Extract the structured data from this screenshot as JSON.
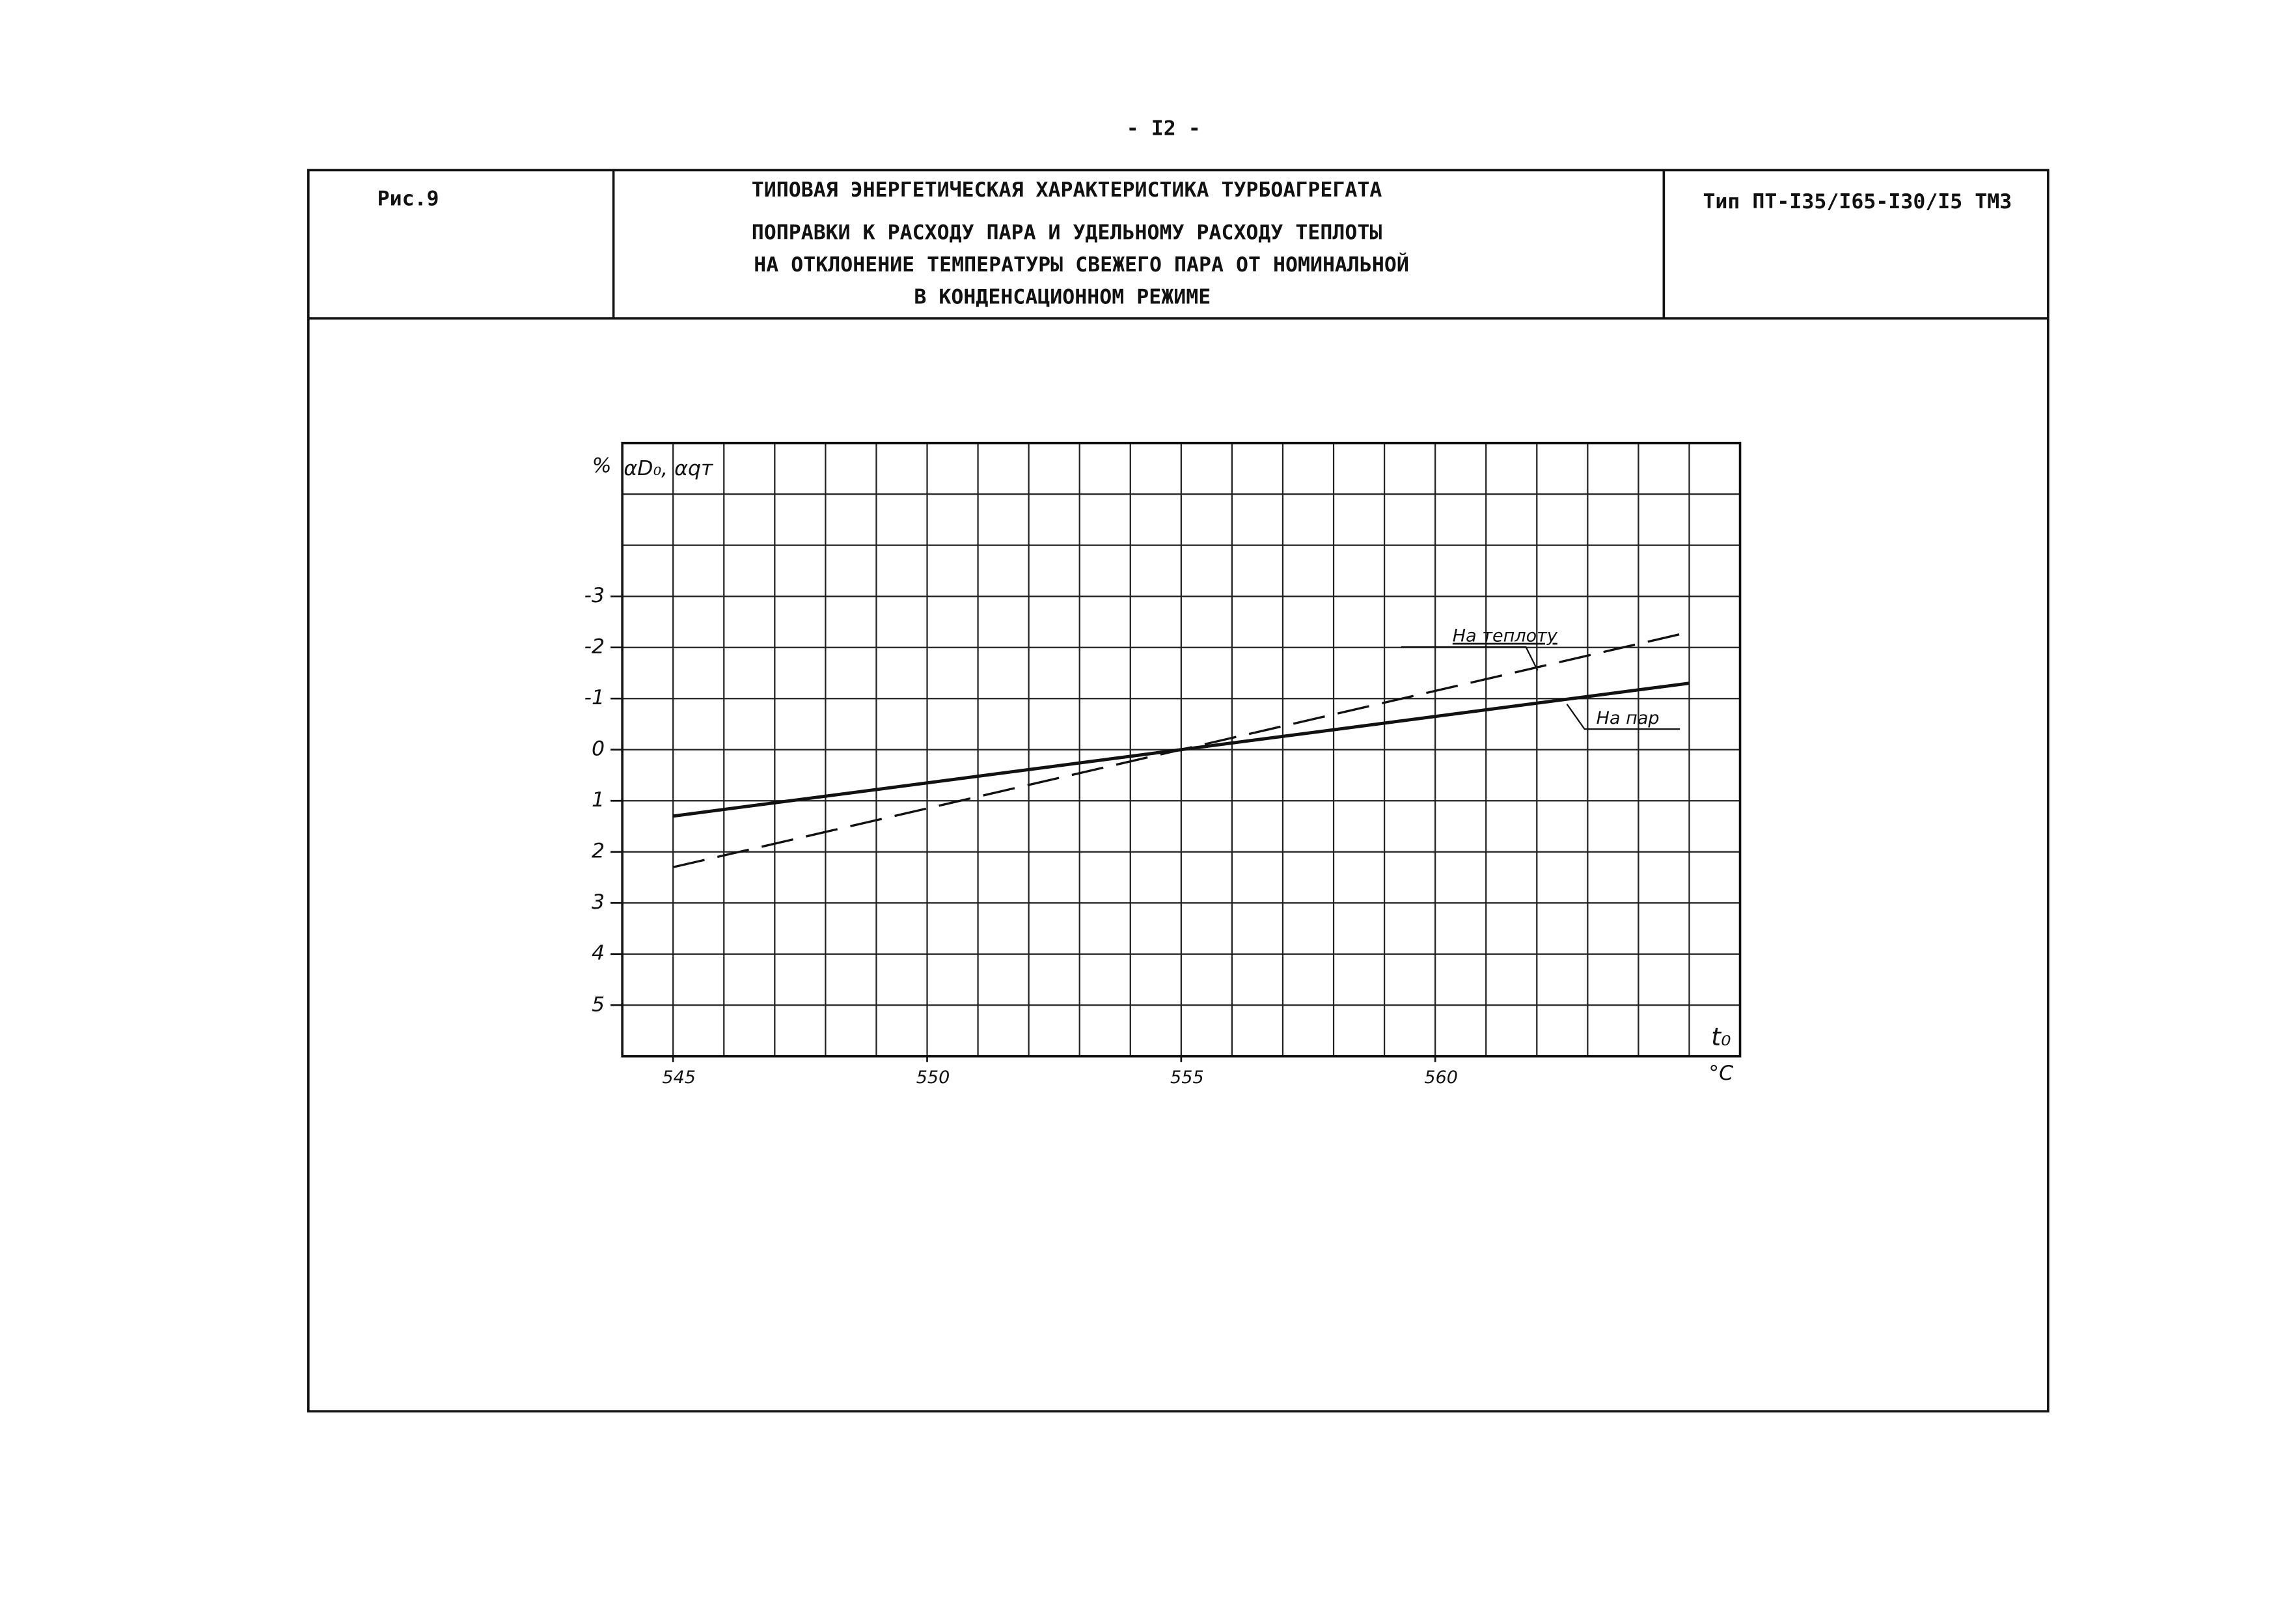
{
  "page_number": "- I2 -",
  "header": {
    "figure": "Рис.9",
    "title_lines": [
      "ТИПОВАЯ ЭНЕРГЕТИЧЕСКАЯ ХАРАКТЕРИСТИКА ТУРБОАГРЕГАТА",
      "ПОПРАВКИ К РАСХОДУ ПАРА И УДЕЛЬНОМУ РАСХОДУ ТЕПЛОТЫ",
      "НА ОТКЛОНЕНИЕ ТЕМПЕРАТУРЫ СВЕЖЕГО ПАРА ОТ НОМИНАЛЬНОЙ",
      "В КОНДЕНСАЦИОННОМ РЕЖИМЕ"
    ],
    "type": "Тип ПТ-I35/I65-I30/I5 ТМЗ"
  },
  "chart_data": {
    "type": "line",
    "y_unit": "%",
    "ylabel": "αD₀, αqт",
    "xlabel": "t₀",
    "x_unit": "°C",
    "x": [
      545,
      555,
      565
    ],
    "series": [
      {
        "name": "На пар",
        "color": "#111111",
        "dash": false,
        "values": [
          1.3,
          0,
          -1.3
        ]
      },
      {
        "name": "На теплоту",
        "color": "#111111",
        "dash": true,
        "values": [
          2.3,
          0,
          -2.3
        ]
      }
    ],
    "xlim": [
      544,
      566
    ],
    "ylim": [
      -6,
      6
    ],
    "y_inverted": true,
    "xticks": [
      545,
      550,
      555,
      560
    ],
    "yticks": [
      -3,
      -2,
      -1,
      0,
      1,
      2,
      3,
      4,
      5
    ],
    "grid": true
  }
}
